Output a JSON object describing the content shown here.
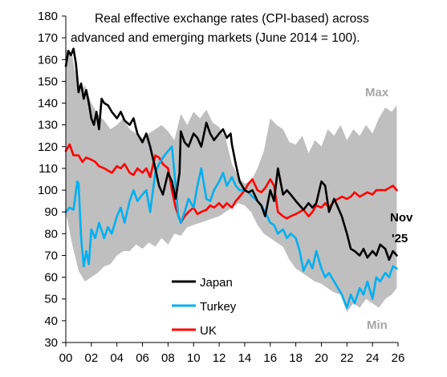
{
  "chart_data": {
    "type": "line",
    "title": "Real effective exchange rates (CPI-based) across",
    "subtitle": "advanced and emerging markets (June 2014 = 100).",
    "xlabel": "",
    "ylabel": "",
    "xlim": [
      2000,
      2026
    ],
    "ylim": [
      30,
      180
    ],
    "x_ticks": [
      "00",
      "02",
      "04",
      "06",
      "08",
      "10",
      "12",
      "14",
      "16",
      "18",
      "20",
      "22",
      "24",
      "26"
    ],
    "y_ticks": [
      "30",
      "40",
      "50",
      "60",
      "70",
      "80",
      "90",
      "100",
      "110",
      "120",
      "130",
      "140",
      "150",
      "160",
      "170",
      "180"
    ],
    "grid": false,
    "legend_position": "bottom-center",
    "band": {
      "upper_label": "Max",
      "lower_label": "Min",
      "color": "#bfbfbf",
      "x": [
        2000,
        2000.5,
        2001,
        2001.5,
        2002,
        2002.5,
        2003,
        2003.5,
        2004,
        2004.5,
        2005,
        2005.5,
        2006,
        2006.5,
        2007,
        2007.5,
        2008,
        2008.5,
        2009,
        2009.5,
        2010,
        2010.5,
        2011,
        2011.5,
        2012,
        2012.5,
        2013,
        2013.5,
        2014,
        2014.5,
        2015,
        2015.5,
        2016,
        2016.5,
        2017,
        2017.5,
        2018,
        2018.5,
        2019,
        2019.5,
        2020,
        2020.5,
        2021,
        2021.5,
        2022,
        2022.5,
        2023,
        2023.5,
        2024,
        2024.5,
        2025,
        2025.5,
        2025.9
      ],
      "upper": [
        165,
        162,
        145,
        148,
        140,
        135,
        132,
        128,
        130,
        133,
        128,
        126,
        124,
        126,
        128,
        130,
        127,
        123,
        135,
        130,
        136,
        133,
        137,
        131,
        129,
        124,
        112,
        106,
        103,
        104,
        110,
        118,
        133,
        130,
        128,
        122,
        121,
        125,
        117,
        123,
        120,
        128,
        125,
        130,
        123,
        128,
        125,
        130,
        126,
        133,
        138,
        136,
        139
      ],
      "lower": [
        90,
        75,
        63,
        58,
        60,
        62,
        65,
        66,
        70,
        72,
        72,
        75,
        73,
        76,
        74,
        78,
        75,
        80,
        79,
        83,
        84,
        85,
        86,
        87,
        88,
        90,
        92,
        94,
        93,
        90,
        84,
        80,
        78,
        76,
        74,
        68,
        64,
        62,
        60,
        58,
        57,
        55,
        53,
        52,
        44,
        48,
        46,
        50,
        48,
        46,
        50,
        52,
        55
      ]
    },
    "series": [
      {
        "name": "Japan",
        "color": "#000000",
        "x": [
          2000,
          2000.2,
          2000.4,
          2000.6,
          2000.8,
          2001,
          2001.2,
          2001.4,
          2001.6,
          2001.8,
          2002,
          2002.2,
          2002.4,
          2002.6,
          2002.8,
          2003,
          2003.3,
          2003.6,
          2004,
          2004.3,
          2004.6,
          2005,
          2005.3,
          2005.6,
          2006,
          2006.3,
          2006.6,
          2007,
          2007.3,
          2007.6,
          2008,
          2008.3,
          2008.6,
          2008.9,
          2009,
          2009.3,
          2009.6,
          2010,
          2010.3,
          2010.6,
          2011,
          2011.3,
          2011.6,
          2012,
          2012.3,
          2012.6,
          2012.9,
          2013,
          2013.3,
          2013.6,
          2014,
          2014.3,
          2014.6,
          2015,
          2015.3,
          2015.6,
          2016,
          2016.3,
          2016.6,
          2017,
          2017.3,
          2017.6,
          2018,
          2018.3,
          2018.6,
          2019,
          2019.3,
          2019.6,
          2020,
          2020.3,
          2020.6,
          2021,
          2021.3,
          2021.6,
          2022,
          2022.3,
          2022.6,
          2023,
          2023.3,
          2023.6,
          2024,
          2024.3,
          2024.6,
          2025,
          2025.3,
          2025.6,
          2025.9
        ],
        "values": [
          157,
          164,
          162,
          165,
          158,
          145,
          149,
          142,
          146,
          140,
          133,
          130,
          136,
          128,
          142,
          140,
          139,
          136,
          133,
          136,
          132,
          130,
          133,
          126,
          122,
          126,
          120,
          110,
          102,
          98,
          108,
          104,
          96,
          108,
          127,
          122,
          120,
          126,
          124,
          120,
          131,
          126,
          123,
          126,
          128,
          124,
          126,
          121,
          112,
          104,
          100,
          99,
          100,
          95,
          93,
          88,
          100,
          95,
          110,
          98,
          100,
          98,
          95,
          93,
          91,
          94,
          92,
          94,
          104,
          102,
          90,
          96,
          92,
          88,
          80,
          73,
          72,
          70,
          73,
          69,
          72,
          70,
          75,
          73,
          68,
          72,
          70
        ]
      },
      {
        "name": "Turkey",
        "color": "#00b0f0",
        "x": [
          2000,
          2000.3,
          2000.6,
          2000.9,
          2001,
          2001.2,
          2001.4,
          2001.6,
          2001.8,
          2002,
          2002.3,
          2002.6,
          2003,
          2003.3,
          2003.6,
          2004,
          2004.3,
          2004.6,
          2005,
          2005.3,
          2005.6,
          2006,
          2006.3,
          2006.6,
          2007,
          2007.3,
          2007.6,
          2008,
          2008.3,
          2008.6,
          2008.8,
          2009,
          2009.3,
          2009.6,
          2010,
          2010.3,
          2010.6,
          2011,
          2011.3,
          2011.6,
          2012,
          2012.3,
          2012.6,
          2013,
          2013.3,
          2013.6,
          2014,
          2014.3,
          2014.6,
          2015,
          2015.3,
          2015.6,
          2016,
          2016.3,
          2016.6,
          2017,
          2017.3,
          2017.6,
          2018,
          2018.3,
          2018.6,
          2019,
          2019.3,
          2019.6,
          2020,
          2020.3,
          2020.6,
          2021,
          2021.3,
          2021.6,
          2022,
          2022.3,
          2022.6,
          2023,
          2023.3,
          2023.6,
          2024,
          2024.3,
          2024.6,
          2025,
          2025.3,
          2025.6,
          2025.9
        ],
        "values": [
          90,
          92,
          91,
          104,
          103,
          78,
          65,
          72,
          66,
          82,
          78,
          85,
          78,
          83,
          80,
          88,
          92,
          85,
          95,
          100,
          95,
          98,
          100,
          90,
          108,
          112,
          115,
          118,
          120,
          102,
          88,
          85,
          90,
          96,
          92,
          102,
          110,
          96,
          95,
          100,
          104,
          108,
          102,
          106,
          102,
          100,
          100,
          99,
          97,
          95,
          93,
          90,
          85,
          84,
          80,
          82,
          78,
          80,
          78,
          72,
          63,
          68,
          64,
          72,
          64,
          60,
          62,
          58,
          55,
          52,
          46,
          52,
          48,
          55,
          52,
          58,
          50,
          60,
          58,
          62,
          60,
          65,
          64
        ]
      },
      {
        "name": "UK",
        "color": "#ff0000",
        "x": [
          2000,
          2000.3,
          2000.6,
          2001,
          2001.3,
          2001.6,
          2002,
          2002.3,
          2002.6,
          2003,
          2003.3,
          2003.6,
          2004,
          2004.3,
          2004.6,
          2005,
          2005.3,
          2005.6,
          2006,
          2006.3,
          2006.6,
          2007,
          2007.3,
          2007.6,
          2008,
          2008.3,
          2008.6,
          2009,
          2009.3,
          2009.6,
          2010,
          2010.3,
          2010.6,
          2011,
          2011.3,
          2011.6,
          2012,
          2012.3,
          2012.6,
          2013,
          2013.3,
          2013.6,
          2014,
          2014.3,
          2014.6,
          2015,
          2015.3,
          2015.6,
          2016,
          2016.3,
          2016.6,
          2017,
          2017.3,
          2017.6,
          2018,
          2018.3,
          2018.6,
          2019,
          2019.3,
          2019.6,
          2020,
          2020.3,
          2020.6,
          2021,
          2021.3,
          2021.6,
          2022,
          2022.3,
          2022.6,
          2023,
          2023.3,
          2023.6,
          2024,
          2024.3,
          2024.6,
          2025,
          2025.3,
          2025.6,
          2025.9
        ],
        "values": [
          118,
          121,
          116,
          116,
          113,
          115,
          114,
          113,
          111,
          110,
          109,
          108,
          111,
          110,
          112,
          108,
          107,
          110,
          108,
          110,
          106,
          116,
          115,
          112,
          110,
          100,
          92,
          85,
          88,
          90,
          92,
          89,
          90,
          91,
          93,
          92,
          94,
          92,
          94,
          92,
          95,
          97,
          100,
          103,
          105,
          100,
          99,
          101,
          105,
          102,
          90,
          88,
          87,
          88,
          89,
          90,
          91,
          88,
          90,
          93,
          92,
          94,
          92,
          95,
          96,
          97,
          96,
          97,
          99,
          97,
          98,
          99,
          98,
          100,
          100,
          100,
          101,
          102,
          100
        ]
      }
    ],
    "annotations": [
      {
        "text": "Nov",
        "x": 2025.3,
        "y": 86
      },
      {
        "text": "'25",
        "x": 2025.3,
        "y": 76
      }
    ]
  }
}
